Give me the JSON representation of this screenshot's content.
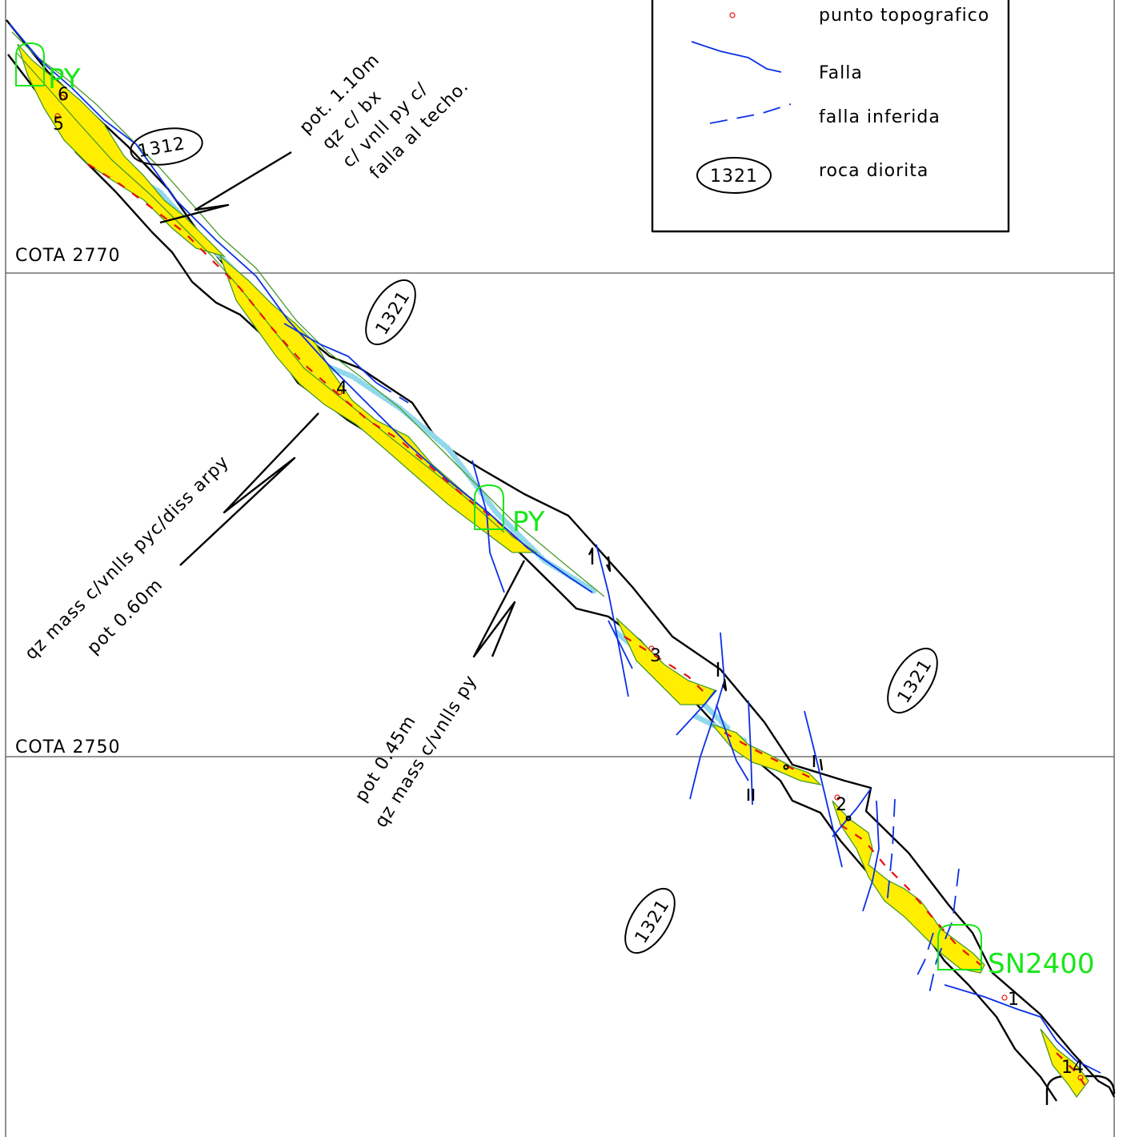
{
  "legend": {
    "items": [
      {
        "symbol": "topo-point",
        "label": "punto topografico"
      },
      {
        "symbol": "fault-line",
        "label": "Falla"
      },
      {
        "symbol": "inferred-fault-line",
        "label": "falla inferida"
      },
      {
        "symbol": "rock-ellipse",
        "code": "1321",
        "label": "roca diorita"
      }
    ]
  },
  "levels": [
    {
      "label": "COTA 2770"
    },
    {
      "label": "COTA 2750"
    }
  ],
  "rock_labels": [
    "1312",
    "1321",
    "1321",
    "1321"
  ],
  "sample_tags": [
    "PY",
    "PY",
    "SN2400"
  ],
  "survey_points": [
    "6",
    "5",
    "4",
    "3",
    "2",
    "1",
    "14"
  ],
  "annotations": {
    "note1": [
      "pot. 1.10m",
      "qz c/ bx",
      "c/ vnll py c/",
      "falla  al techo."
    ],
    "note2": [
      "qz mass c/vnlls pyc/diss arpy",
      "pot 0.60m"
    ],
    "note3": [
      "pot 0.45m",
      "qz mass c/vnlls py"
    ]
  },
  "colors": {
    "vein_fill": "#ffee00",
    "vein_center": "#e81010",
    "fault": "#0b30e6",
    "sample_tag": "#19e619",
    "altered_zone_dots": "#90d8ec"
  }
}
